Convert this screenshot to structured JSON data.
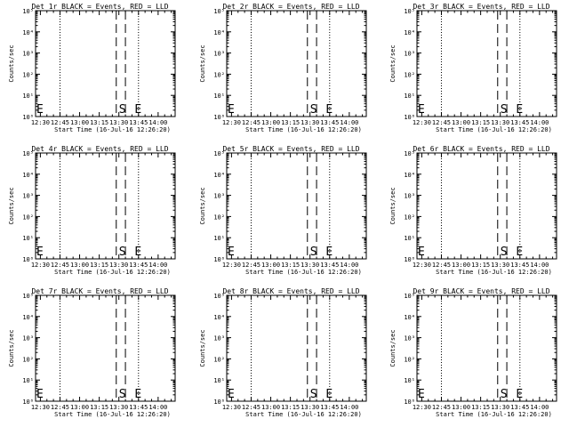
{
  "x_ticks": [
    "12:30",
    "12:45",
    "13:00",
    "13:15",
    "13:30",
    "13:45",
    "14:00"
  ],
  "x_label": "Start Time (16-Jul-16 12:26:20)",
  "y_label": "Counts/sec",
  "y_ticks": [
    "10⁰",
    "10¹",
    "10²",
    "10³",
    "10⁴",
    "10⁵"
  ],
  "chart_data": [
    {
      "type": "line",
      "title": "Det 1r BLACK = Events, RED = LLD",
      "xlim": [
        "12:26:20",
        "14:13:00"
      ],
      "ylim": [
        1,
        100000
      ],
      "ylog": true,
      "dotted_lines_x": [
        "12:26:20",
        "12:45",
        "13:45",
        "14:13"
      ],
      "dashed_lines_x": [
        "13:28",
        "13:35"
      ],
      "annotations": [
        {
          "text": "E",
          "x": "12:27"
        },
        {
          "text": "S",
          "x": "13:30"
        },
        {
          "text": "E",
          "x": "13:42"
        }
      ],
      "series": []
    },
    {
      "type": "line",
      "title": "Det 2r BLACK = Events, RED = LLD",
      "xlim": [
        "12:26:20",
        "14:13:00"
      ],
      "ylim": [
        1,
        100000
      ],
      "ylog": true,
      "dotted_lines_x": [
        "12:26:20",
        "12:45",
        "13:45",
        "14:13"
      ],
      "dashed_lines_x": [
        "13:28",
        "13:35"
      ],
      "annotations": [
        {
          "text": "E",
          "x": "12:27"
        },
        {
          "text": "S",
          "x": "13:30"
        },
        {
          "text": "E",
          "x": "13:42"
        }
      ],
      "series": []
    },
    {
      "type": "line",
      "title": "Det 3r BLACK = Events, RED = LLD",
      "xlim": [
        "12:26:20",
        "14:13:00"
      ],
      "ylim": [
        1,
        100000
      ],
      "ylog": true,
      "dotted_lines_x": [
        "12:26:20",
        "12:45",
        "13:45",
        "14:13"
      ],
      "dashed_lines_x": [
        "13:28",
        "13:35"
      ],
      "annotations": [
        {
          "text": "E",
          "x": "12:27"
        },
        {
          "text": "S",
          "x": "13:30"
        },
        {
          "text": "E",
          "x": "13:42"
        }
      ],
      "series": []
    },
    {
      "type": "line",
      "title": "Det 4r BLACK = Events, RED = LLD",
      "xlim": [
        "12:26:20",
        "14:13:00"
      ],
      "ylim": [
        1,
        100000
      ],
      "ylog": true,
      "dotted_lines_x": [
        "12:26:20",
        "12:45",
        "13:45",
        "14:13"
      ],
      "dashed_lines_x": [
        "13:28",
        "13:35"
      ],
      "annotations": [
        {
          "text": "E",
          "x": "12:27"
        },
        {
          "text": "S",
          "x": "13:30"
        },
        {
          "text": "E",
          "x": "13:42"
        }
      ],
      "series": []
    },
    {
      "type": "line",
      "title": "Det 5r BLACK = Events, RED = LLD",
      "xlim": [
        "12:26:20",
        "14:13:00"
      ],
      "ylim": [
        1,
        100000
      ],
      "ylog": true,
      "dotted_lines_x": [
        "12:26:20",
        "12:45",
        "13:45",
        "14:13"
      ],
      "dashed_lines_x": [
        "13:28",
        "13:35"
      ],
      "annotations": [
        {
          "text": "E",
          "x": "12:27"
        },
        {
          "text": "S",
          "x": "13:30"
        },
        {
          "text": "E",
          "x": "13:42"
        }
      ],
      "series": []
    },
    {
      "type": "line",
      "title": "Det 6r BLACK = Events, RED = LLD",
      "xlim": [
        "12:26:20",
        "14:13:00"
      ],
      "ylim": [
        1,
        100000
      ],
      "ylog": true,
      "dotted_lines_x": [
        "12:26:20",
        "12:45",
        "13:45",
        "14:13"
      ],
      "dashed_lines_x": [
        "13:28",
        "13:35"
      ],
      "annotations": [
        {
          "text": "E",
          "x": "12:27"
        },
        {
          "text": "S",
          "x": "13:30"
        },
        {
          "text": "E",
          "x": "13:42"
        }
      ],
      "series": []
    },
    {
      "type": "line",
      "title": "Det 7r BLACK = Events, RED = LLD",
      "xlim": [
        "12:26:20",
        "14:13:00"
      ],
      "ylim": [
        1,
        100000
      ],
      "ylog": true,
      "dotted_lines_x": [
        "12:26:20",
        "12:45",
        "13:45",
        "14:13"
      ],
      "dashed_lines_x": [
        "13:28",
        "13:35"
      ],
      "annotations": [
        {
          "text": "E",
          "x": "12:27"
        },
        {
          "text": "S",
          "x": "13:30"
        },
        {
          "text": "E",
          "x": "13:42"
        }
      ],
      "series": []
    },
    {
      "type": "line",
      "title": "Det 8r BLACK = Events, RED = LLD",
      "xlim": [
        "12:26:20",
        "14:13:00"
      ],
      "ylim": [
        1,
        100000
      ],
      "ylog": true,
      "dotted_lines_x": [
        "12:26:20",
        "12:45",
        "13:45",
        "14:13"
      ],
      "dashed_lines_x": [
        "13:28",
        "13:35"
      ],
      "annotations": [
        {
          "text": "E",
          "x": "12:27"
        },
        {
          "text": "S",
          "x": "13:30"
        },
        {
          "text": "E",
          "x": "13:42"
        }
      ],
      "series": []
    },
    {
      "type": "line",
      "title": "Det 9r BLACK = Events, RED = LLD",
      "xlim": [
        "12:26:20",
        "14:13:00"
      ],
      "ylim": [
        1,
        100000
      ],
      "ylog": true,
      "dotted_lines_x": [
        "12:26:20",
        "12:45",
        "13:45",
        "14:13"
      ],
      "dashed_lines_x": [
        "13:28",
        "13:35"
      ],
      "annotations": [
        {
          "text": "E",
          "x": "12:27"
        },
        {
          "text": "S",
          "x": "13:30"
        },
        {
          "text": "E",
          "x": "13:42"
        }
      ],
      "series": []
    }
  ]
}
